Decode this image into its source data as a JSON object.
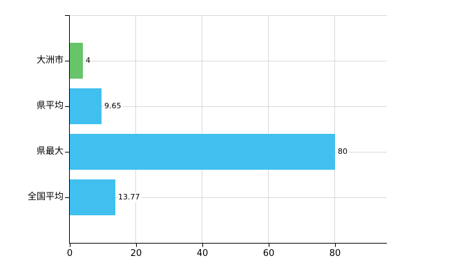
{
  "chart_data": {
    "type": "bar",
    "orientation": "horizontal",
    "categories": [
      "大洲市",
      "県平均",
      "県最大",
      "全国平均"
    ],
    "values": [
      4,
      9.65,
      80,
      13.77
    ],
    "value_labels": [
      "4",
      "9.65",
      "80",
      "13.77"
    ],
    "bar_colors": [
      "#67c46a",
      "#41c0f0",
      "#41c0f0",
      "#41c0f0"
    ],
    "x_ticks": [
      0,
      20,
      40,
      60,
      80
    ],
    "xlim": [
      0,
      95.6
    ],
    "grid": true,
    "legend": "none"
  },
  "colors": {
    "background": "#ffffff",
    "axis": "#000000",
    "grid": "#d9d9d9",
    "text": "#000000",
    "bar_blue": "#41c0f0",
    "bar_green": "#67c46a"
  }
}
